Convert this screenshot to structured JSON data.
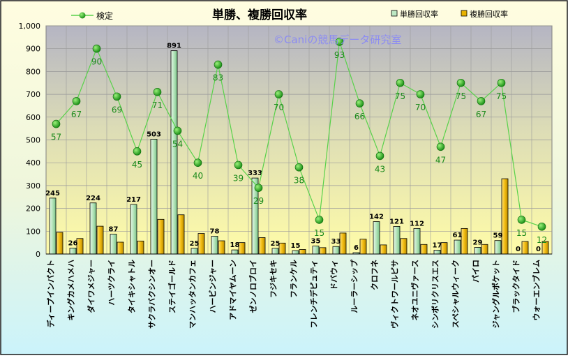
{
  "chart_data": {
    "type": "bar",
    "title": "単勝、複勝回収率",
    "watermark": "©Caniの競馬データ研究室",
    "ylim": [
      0,
      1000
    ],
    "yticks": [
      "0",
      "100",
      "200",
      "300",
      "400",
      "500",
      "600",
      "700",
      "800",
      "900",
      "1,000"
    ],
    "grid": true,
    "legend_position": "top",
    "categories": [
      "ディープインパクト",
      "キングカメハメハ",
      "ダイワメジャー",
      "ハーツクライ",
      "タイキシャトル",
      "サクラバクシンオー",
      "ステイゴールド",
      "マンハッタンカフェ",
      "ハービンジャー",
      "アドマイヤムーン",
      "ゼンノロブロイ",
      "フジキセキ",
      "フランケル",
      "フレンチデピュティ",
      "ドバウィ",
      "ルーラーシップ",
      "クロフネ",
      "ヴィクトワールピサ",
      "ネオユニヴァース",
      "シンボリクリスエス",
      "スペシャルウィーク",
      "パイロ",
      "ジャングルポケット",
      "ブラックタイド",
      "ウォーエンブレム"
    ],
    "series": [
      {
        "name": "単勝回収率",
        "kind": "bar",
        "color": "#bde8c3",
        "values": [
          245,
          26,
          224,
          87,
          217,
          503,
          891,
          25,
          78,
          18,
          333,
          25,
          15,
          35,
          33,
          6,
          142,
          121,
          112,
          17,
          61,
          29,
          59,
          0,
          0
        ]
      },
      {
        "name": "複勝回収率",
        "kind": "bar",
        "color": "#e8b200",
        "values": [
          95,
          68,
          122,
          52,
          57,
          152,
          172,
          90,
          58,
          50,
          72,
          48,
          20,
          28,
          92,
          65,
          40,
          68,
          42,
          50,
          112,
          42,
          330,
          55,
          55
        ]
      },
      {
        "name": "検定",
        "kind": "line",
        "color": "#58d24a",
        "marker_color": "#1f9a1a",
        "label_color": "#1a8a1a",
        "values": [
          57,
          67,
          90,
          69,
          45,
          71,
          54,
          40,
          83,
          39,
          29,
          70,
          38,
          15,
          93,
          66,
          43,
          75,
          70,
          47,
          75,
          67,
          75,
          15,
          12
        ]
      }
    ]
  }
}
